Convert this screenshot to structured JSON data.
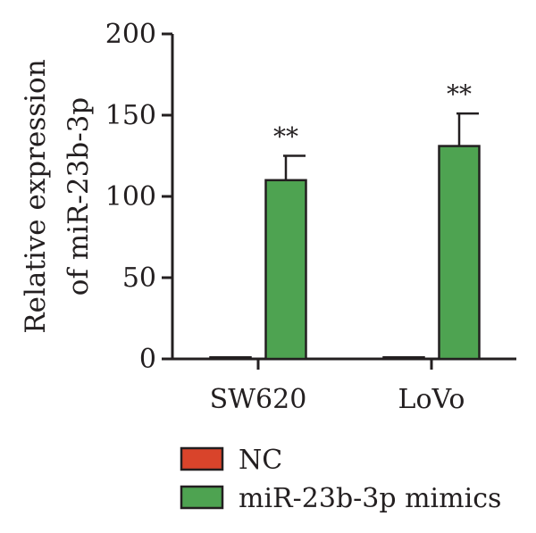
{
  "chart_data": {
    "type": "bar",
    "title": "",
    "ylabel_lines": [
      "Relative expression",
      "of miR-23b-3p"
    ],
    "xlabel": "",
    "ylim": [
      0,
      200
    ],
    "yticks": [
      0,
      50,
      100,
      150,
      200
    ],
    "categories": [
      "SW620",
      "LoVo"
    ],
    "series": [
      {
        "name": "NC",
        "color": "#d9442b",
        "values": [
          1,
          1
        ],
        "errors": [
          0,
          0
        ]
      },
      {
        "name": "miR-23b-3p mimics",
        "color": "#4ea351",
        "values": [
          110,
          131
        ],
        "errors": [
          15,
          20
        ]
      }
    ],
    "annotations": [
      "**",
      "**"
    ],
    "legend_position": "bottom",
    "grid": false
  }
}
